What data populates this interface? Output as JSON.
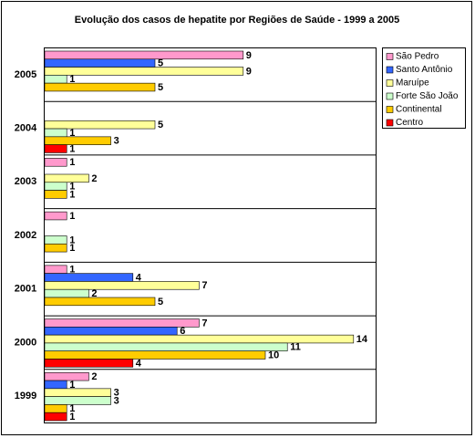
{
  "chart_data": {
    "type": "bar",
    "orientation": "horizontal",
    "title": "Evolução dos casos de hepatite por Regiões de Saúde - 1999 a 2005",
    "categories": [
      "2005",
      "2004",
      "2003",
      "2002",
      "2001",
      "2000",
      "1999"
    ],
    "series": [
      {
        "name": "São Pedro",
        "color": "#ff99cc",
        "values": [
          9,
          null,
          1,
          1,
          1,
          7,
          2
        ]
      },
      {
        "name": "Santo Antônio",
        "color": "#3366ff",
        "values": [
          5,
          null,
          null,
          null,
          4,
          6,
          1
        ]
      },
      {
        "name": "Maruípe",
        "color": "#ffff99",
        "values": [
          9,
          5,
          2,
          null,
          7,
          14,
          3
        ]
      },
      {
        "name": "Forte São João",
        "color": "#ccffcc",
        "values": [
          1,
          1,
          1,
          1,
          2,
          11,
          3
        ]
      },
      {
        "name": "Continental",
        "color": "#ffcc00",
        "values": [
          5,
          3,
          1,
          1,
          5,
          10,
          1
        ]
      },
      {
        "name": "Centro",
        "color": "#ff0000",
        "values": [
          null,
          1,
          null,
          null,
          null,
          4,
          1
        ]
      }
    ],
    "xlim": [
      0,
      15
    ],
    "legend": "right"
  }
}
